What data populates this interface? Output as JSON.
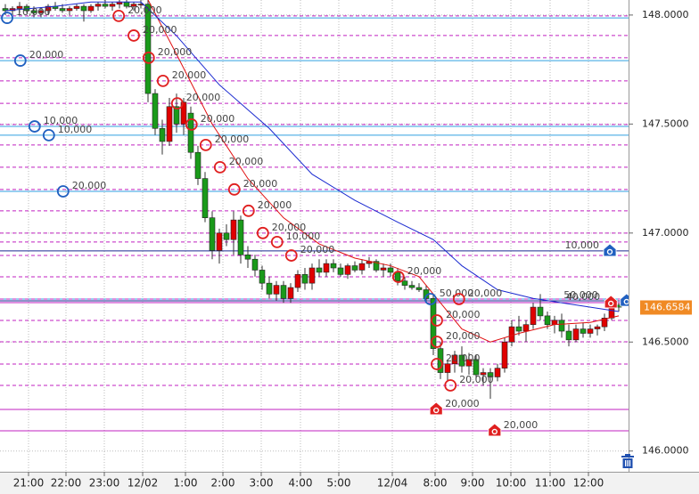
{
  "chart_data": {
    "type": "candlestick",
    "ylim": [
      145.905,
      148.069
    ],
    "yticks": [
      {
        "value": 148.0,
        "label": "148.0000"
      },
      {
        "value": 147.5,
        "label": "147.5000"
      },
      {
        "value": 147.0,
        "label": "147.0000"
      },
      {
        "value": 146.5,
        "label": "146.5000"
      },
      {
        "value": 146.0,
        "label": "146.0000"
      }
    ],
    "x_labels": [
      "21:00",
      "22:00",
      "23:00",
      "12/02",
      "1:00",
      "2:00",
      "3:00",
      "4:00",
      "5:00",
      "12/04",
      "8:00",
      "9:00",
      "10:00",
      "11:00",
      "12:00"
    ],
    "up_color": "#e00000",
    "down_color": "#1a9a1a",
    "grid": true,
    "last_price": {
      "value": 146.6584,
      "label": "146.6584"
    },
    "candles": [
      [
        148.03,
        148.05,
        148.0,
        148.02
      ],
      [
        148.02,
        148.04,
        148.0,
        148.03
      ],
      [
        148.03,
        148.06,
        148.01,
        148.04
      ],
      [
        148.04,
        148.05,
        148.01,
        148.02
      ],
      [
        148.02,
        148.04,
        147.99,
        148.01
      ],
      [
        148.01,
        148.03,
        147.99,
        148.02
      ],
      [
        148.02,
        148.05,
        148.0,
        148.04
      ],
      [
        148.04,
        148.06,
        148.02,
        148.03
      ],
      [
        148.03,
        148.05,
        148.01,
        148.02
      ],
      [
        148.02,
        148.04,
        148.0,
        148.03
      ],
      [
        148.03,
        148.05,
        148.02,
        148.04
      ],
      [
        148.04,
        148.05,
        147.97,
        148.02
      ],
      [
        148.02,
        148.05,
        148.01,
        148.04
      ],
      [
        148.04,
        148.06,
        148.02,
        148.05
      ],
      [
        148.05,
        148.07,
        148.03,
        148.04
      ],
      [
        148.04,
        148.06,
        148.02,
        148.05
      ],
      [
        148.05,
        148.07,
        148.03,
        148.06
      ],
      [
        148.06,
        148.07,
        148.03,
        148.04
      ],
      [
        148.04,
        148.06,
        148.02,
        148.05
      ],
      [
        148.05,
        148.07,
        148.03,
        148.05
      ],
      [
        148.05,
        148.07,
        147.6,
        147.64
      ],
      [
        147.64,
        147.66,
        147.45,
        147.48
      ],
      [
        147.48,
        147.52,
        147.36,
        147.42
      ],
      [
        147.42,
        147.62,
        147.4,
        147.58
      ],
      [
        147.58,
        147.64,
        147.46,
        147.5
      ],
      [
        147.5,
        147.62,
        147.45,
        147.6
      ],
      [
        147.55,
        147.58,
        147.34,
        147.37
      ],
      [
        147.37,
        147.4,
        147.22,
        147.25
      ],
      [
        147.25,
        147.28,
        147.05,
        147.07
      ],
      [
        147.07,
        147.1,
        146.88,
        146.92
      ],
      [
        146.92,
        147.02,
        146.86,
        147.0
      ],
      [
        147.0,
        147.04,
        146.94,
        146.97
      ],
      [
        146.97,
        147.1,
        146.9,
        147.06
      ],
      [
        147.06,
        147.08,
        146.86,
        146.9
      ],
      [
        146.9,
        146.94,
        146.84,
        146.88
      ],
      [
        146.88,
        146.9,
        146.8,
        146.83
      ],
      [
        146.83,
        146.85,
        146.74,
        146.77
      ],
      [
        146.77,
        146.8,
        146.7,
        146.72
      ],
      [
        146.72,
        146.78,
        146.69,
        146.76
      ],
      [
        146.76,
        146.78,
        146.68,
        146.7
      ],
      [
        146.7,
        146.77,
        146.68,
        146.75
      ],
      [
        146.75,
        146.83,
        146.73,
        146.81
      ],
      [
        146.81,
        146.84,
        146.74,
        146.77
      ],
      [
        146.77,
        146.86,
        146.74,
        146.84
      ],
      [
        146.84,
        146.88,
        146.8,
        146.82
      ],
      [
        146.82,
        146.88,
        146.8,
        146.86
      ],
      [
        146.86,
        146.88,
        146.82,
        146.84
      ],
      [
        146.84,
        146.86,
        146.8,
        146.81
      ],
      [
        146.81,
        146.86,
        146.79,
        146.85
      ],
      [
        146.85,
        146.87,
        146.82,
        146.83
      ],
      [
        146.83,
        146.88,
        146.81,
        146.86
      ],
      [
        146.86,
        146.89,
        146.84,
        146.87
      ],
      [
        146.87,
        146.88,
        146.82,
        146.83
      ],
      [
        146.83,
        146.86,
        146.8,
        146.84
      ],
      [
        146.84,
        146.86,
        146.8,
        146.82
      ],
      [
        146.82,
        146.84,
        146.76,
        146.78
      ],
      [
        146.78,
        146.8,
        146.74,
        146.76
      ],
      [
        146.76,
        146.78,
        146.74,
        146.75
      ],
      [
        146.75,
        146.77,
        146.73,
        146.74
      ],
      [
        146.74,
        146.76,
        146.68,
        146.7
      ],
      [
        146.7,
        146.72,
        146.44,
        146.47
      ],
      [
        146.47,
        146.5,
        146.33,
        146.36
      ],
      [
        146.36,
        146.42,
        146.32,
        146.4
      ],
      [
        146.4,
        146.46,
        146.36,
        146.44
      ],
      [
        146.44,
        146.48,
        146.36,
        146.39
      ],
      [
        146.39,
        146.45,
        146.35,
        146.42
      ],
      [
        146.42,
        146.44,
        146.33,
        146.35
      ],
      [
        146.35,
        146.38,
        146.3,
        146.36
      ],
      [
        146.36,
        146.38,
        146.24,
        146.34
      ],
      [
        146.34,
        146.4,
        146.32,
        146.38
      ],
      [
        146.38,
        146.52,
        146.36,
        146.5
      ],
      [
        146.5,
        146.6,
        146.48,
        146.57
      ],
      [
        146.57,
        146.62,
        146.53,
        146.55
      ],
      [
        146.55,
        146.6,
        146.5,
        146.58
      ],
      [
        146.58,
        146.68,
        146.56,
        146.66
      ],
      [
        146.66,
        146.72,
        146.6,
        146.62
      ],
      [
        146.62,
        146.64,
        146.56,
        146.58
      ],
      [
        146.58,
        146.62,
        146.54,
        146.6
      ],
      [
        146.6,
        146.63,
        146.52,
        146.55
      ],
      [
        146.55,
        146.58,
        146.48,
        146.51
      ],
      [
        146.51,
        146.58,
        146.5,
        146.56
      ],
      [
        146.56,
        146.59,
        146.52,
        146.54
      ],
      [
        146.54,
        146.58,
        146.52,
        146.56
      ],
      [
        146.56,
        146.58,
        146.53,
        146.57
      ],
      [
        146.57,
        146.63,
        146.55,
        146.61
      ],
      [
        146.61,
        146.7,
        146.6,
        146.67
      ],
      [
        146.67,
        146.68,
        146.64,
        146.66
      ]
    ],
    "moving_averages": [
      {
        "color": "#e01010",
        "x": [
          20,
          24,
          29,
          34,
          39,
          44,
          49,
          54,
          58,
          61,
          64,
          68,
          72,
          77,
          82,
          86
        ],
        "values": [
          148.07,
          147.82,
          147.5,
          147.25,
          147.07,
          146.95,
          146.885,
          146.85,
          146.8,
          146.68,
          146.56,
          146.5,
          146.54,
          146.58,
          146.59,
          146.62
        ]
      },
      {
        "color": "#1a2ad0",
        "x": [
          0,
          7,
          12,
          19,
          24,
          30,
          37,
          43,
          49,
          55,
          60,
          64,
          69,
          74,
          80,
          86
        ],
        "values": [
          148.02,
          148.04,
          148.06,
          148.06,
          147.905,
          147.68,
          147.48,
          147.27,
          147.15,
          147.05,
          146.97,
          146.85,
          146.74,
          146.7,
          146.67,
          146.64
        ]
      }
    ],
    "orders": [
      {
        "x": 0.25,
        "price": 147.987,
        "label": "10,000",
        "color": "#2060c0"
      },
      {
        "x": 2.1,
        "price": 147.791,
        "label": "20,000",
        "color": "#2060c0"
      },
      {
        "x": 4.1,
        "price": 147.489,
        "label": "10,000",
        "color": "#2060c0"
      },
      {
        "x": 6.1,
        "price": 147.449,
        "label": "10,000",
        "color": "#2060c0"
      },
      {
        "x": 8.1,
        "price": 147.191,
        "label": "20,000",
        "color": "#2060c0"
      },
      {
        "x": 15.9,
        "price": 147.996,
        "label": "20,000",
        "color": "#e02020"
      },
      {
        "x": 18,
        "price": 147.906,
        "label": "20,000",
        "color": "#e02020"
      },
      {
        "x": 20.1,
        "price": 147.804,
        "label": "20,000",
        "color": "#e02020"
      },
      {
        "x": 22.1,
        "price": 147.698,
        "label": "20,000",
        "color": "#e02020"
      },
      {
        "x": 24.1,
        "price": 147.595,
        "label": "20,000",
        "color": "#e02020"
      },
      {
        "x": 26.1,
        "price": 147.498,
        "label": "20,000",
        "color": "#e02020"
      },
      {
        "x": 28.1,
        "price": 147.404,
        "label": "20,000",
        "color": "#e02020"
      },
      {
        "x": 30.1,
        "price": 147.302,
        "label": "20,000",
        "color": "#e02020"
      },
      {
        "x": 32.1,
        "price": 147.2,
        "label": "20,000",
        "color": "#e02020"
      },
      {
        "x": 34.1,
        "price": 147.102,
        "label": "20,000",
        "color": "#e02020"
      },
      {
        "x": 36.1,
        "price": 147.0,
        "label": "20,000",
        "color": "#e02020"
      },
      {
        "x": 38.1,
        "price": 146.959,
        "label": "10,000",
        "color": "#e02020"
      },
      {
        "x": 40.1,
        "price": 146.897,
        "label": "20,000",
        "color": "#e02020"
      },
      {
        "x": 55.1,
        "price": 146.799,
        "label": "20,000",
        "color": "#e02020"
      },
      {
        "x": 59.6,
        "price": 146.697,
        "label": "50,000",
        "color": "#2060c0"
      },
      {
        "x": 63.6,
        "price": 146.697,
        "label": "20,000",
        "color": "#e02020"
      },
      {
        "x": 60.5,
        "price": 146.599,
        "label": "20,000",
        "color": "#e02020"
      },
      {
        "x": 60.5,
        "price": 146.501,
        "label": "20,000",
        "color": "#e02020"
      },
      {
        "x": 60.5,
        "price": 146.399,
        "label": "20,000",
        "color": "#e02020"
      },
      {
        "x": 62.4,
        "price": 146.301,
        "label": "20,000",
        "color": "#e02020"
      }
    ],
    "pending": [
      {
        "x": 60.4,
        "price": 146.191,
        "label": "20,000",
        "color": "#e02020"
      },
      {
        "x": 68.6,
        "price": 146.093,
        "label": "20,000",
        "color": "#e02020"
      },
      {
        "x": 84.75,
        "price": 146.918,
        "label": "10,000",
        "color": "#2060c0"
      },
      {
        "x": 87.1,
        "price": 146.689,
        "label": "50,000",
        "color": "#2060c0"
      },
      {
        "x": 84.9,
        "price": 146.681,
        "label": "40,000",
        "color": "#e02020"
      }
    ]
  }
}
